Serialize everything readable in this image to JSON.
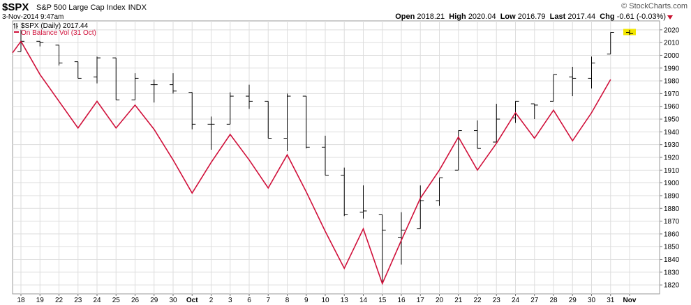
{
  "header": {
    "symbol": "$SPX",
    "name": "S&P 500 Large Cap Index",
    "exchange": "INDX",
    "source": "© StockCharts.com",
    "datetime": "3-Nov-2014 9:47am",
    "open_label": "Open",
    "open": "2018.21",
    "high_label": "High",
    "high": "2020.04",
    "low_label": "Low",
    "low": "2016.79",
    "last_label": "Last",
    "last": "2017.44",
    "chg_label": "Chg",
    "chg": "-0.61 (-0.03%)"
  },
  "legend": {
    "price": "$SPX (Daily) 2017.44",
    "obv": "On Balance Vol (31 Oct)"
  },
  "colors": {
    "obv": "#d0103a",
    "bars": "#000000",
    "grid": "#dddddd",
    "highlight": "#f2e600"
  },
  "chart_data": {
    "type": "line",
    "title": "$SPX (Daily) 2017.44",
    "categories": [
      "18",
      "19",
      "22",
      "23",
      "24",
      "25",
      "26",
      "29",
      "30",
      "Oct",
      "2",
      "3",
      "6",
      "7",
      "8",
      "9",
      "10",
      "13",
      "14",
      "15",
      "16",
      "17",
      "20",
      "21",
      "22",
      "23",
      "24",
      "27",
      "28",
      "29",
      "30",
      "31",
      "Nov"
    ],
    "ylim": [
      1813,
      2027
    ],
    "y_ticks": [
      1820,
      1830,
      1840,
      1850,
      1860,
      1870,
      1880,
      1890,
      1900,
      1910,
      1920,
      1930,
      1940,
      1950,
      1960,
      1970,
      1980,
      1990,
      2000,
      2010,
      2020
    ],
    "ohlc": [
      {
        "o": 2003,
        "h": 2020,
        "l": 2003,
        "c": 2011
      },
      {
        "o": 2011,
        "h": 2011,
        "l": 2007,
        "c": 2010
      },
      {
        "o": 2008,
        "h": 2008,
        "l": 1992,
        "c": 1994
      },
      {
        "o": 1995,
        "h": 1995,
        "l": 1982,
        "c": 1982
      },
      {
        "o": 1983,
        "h": 1999,
        "l": 1978,
        "c": 1998
      },
      {
        "o": 1998,
        "h": 1998,
        "l": 1965,
        "c": 1965
      },
      {
        "o": 1965,
        "h": 1986,
        "l": 1965,
        "c": 1982
      },
      {
        "o": 1977,
        "h": 1981,
        "l": 1963,
        "c": 1977
      },
      {
        "o": 1977,
        "h": 1986,
        "l": 1970,
        "c": 1972
      },
      {
        "o": 1971,
        "h": 1971,
        "l": 1942,
        "c": 1946
      },
      {
        "o": 1946,
        "h": 1952,
        "l": 1926,
        "c": 1946
      },
      {
        "o": 1946,
        "h": 1971,
        "l": 1946,
        "c": 1968
      },
      {
        "o": 1968,
        "h": 1977,
        "l": 1958,
        "c": 1964
      },
      {
        "o": 1964,
        "h": 1964,
        "l": 1935,
        "c": 1935
      },
      {
        "o": 1935,
        "h": 1970,
        "l": 1925,
        "c": 1968
      },
      {
        "o": 1968,
        "h": 1968,
        "l": 1927,
        "c": 1928
      },
      {
        "o": 1928,
        "h": 1937,
        "l": 1906,
        "c": 1906
      },
      {
        "o": 1906,
        "h": 1912,
        "l": 1874,
        "c": 1875
      },
      {
        "o": 1877,
        "h": 1898,
        "l": 1872,
        "c": 1878
      },
      {
        "o": 1875,
        "h": 1875,
        "l": 1821,
        "c": 1863
      },
      {
        "o": 1857,
        "h": 1877,
        "l": 1836,
        "c": 1863
      },
      {
        "o": 1864,
        "h": 1898,
        "l": 1864,
        "c": 1886
      },
      {
        "o": 1886,
        "h": 1904,
        "l": 1882,
        "c": 1904
      },
      {
        "o": 1910,
        "h": 1941,
        "l": 1910,
        "c": 1941
      },
      {
        "o": 1941,
        "h": 1949,
        "l": 1927,
        "c": 1927
      },
      {
        "o": 1932,
        "h": 1962,
        "l": 1932,
        "c": 1950
      },
      {
        "o": 1951,
        "h": 1964,
        "l": 1947,
        "c": 1964
      },
      {
        "o": 1962,
        "h": 1962,
        "l": 1950,
        "c": 1961
      },
      {
        "o": 1964,
        "h": 1985,
        "l": 1964,
        "c": 1985
      },
      {
        "o": 1983,
        "h": 1991,
        "l": 1968,
        "c": 1982
      },
      {
        "o": 1982,
        "h": 1999,
        "l": 1974,
        "c": 1994
      },
      {
        "o": 2001,
        "h": 2018,
        "l": 2001,
        "c": 2018
      },
      {
        "o": 2018,
        "h": 2020,
        "l": 2016,
        "c": 2017
      }
    ],
    "series": [
      {
        "name": "On Balance Vol (31 Oct)",
        "values": [
          2011,
          1985,
          1964,
          1943,
          1964,
          1943,
          1961,
          1942,
          1918,
          1892,
          1916,
          1938,
          1918,
          1896,
          1922,
          1893,
          1862,
          1833,
          1864,
          1821,
          1855,
          1888,
          1910,
          1936,
          1910,
          1931,
          1955,
          1935,
          1957,
          1933,
          1955,
          1981,
          null
        ]
      }
    ],
    "last_price_marker": 2018,
    "grid": true,
    "legend_position": "top-left"
  }
}
